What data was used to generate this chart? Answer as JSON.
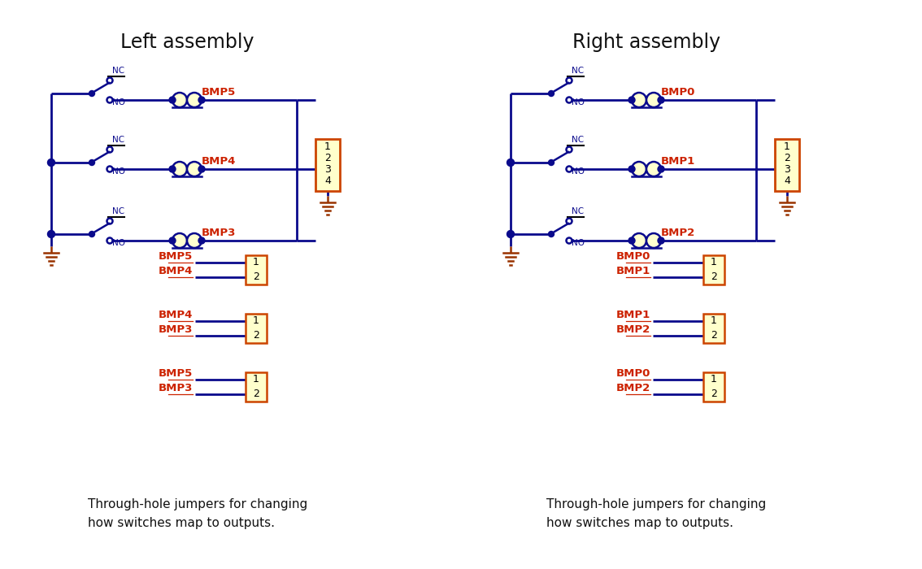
{
  "bg_color": "#ffffff",
  "blue": "#0a0a8c",
  "red_label": "#cc2200",
  "black": "#000000",
  "dark_red": "#993300",
  "yellow_fill": "#ffffcc",
  "conn_border": "#cc4400",
  "title_color": "#111111",
  "title_left": "Left assembly",
  "title_right": "Right assembly",
  "footer": "Through-hole jumpers for changing\nhow switches map to outputs.",
  "left_bmp": [
    "BMP5",
    "BMP4",
    "BMP3"
  ],
  "right_bmp": [
    "BMP0",
    "BMP1",
    "BMP2"
  ],
  "left_jumpers": [
    [
      "BMP5",
      "BMP4"
    ],
    [
      "BMP4",
      "BMP3"
    ],
    [
      "BMP5",
      "BMP3"
    ]
  ],
  "right_jumpers": [
    [
      "BMP0",
      "BMP1"
    ],
    [
      "BMP1",
      "BMP2"
    ],
    [
      "BMP0",
      "BMP2"
    ]
  ]
}
